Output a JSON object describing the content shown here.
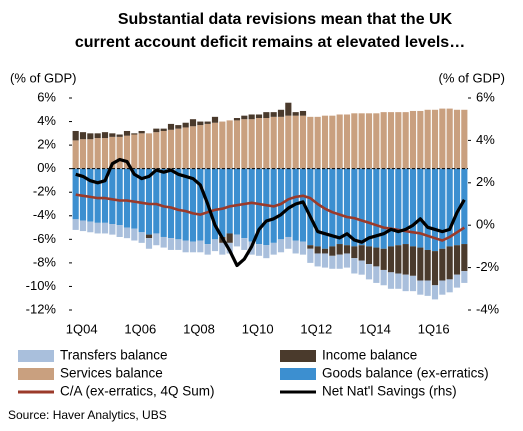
{
  "chart_data": {
    "type": "bar",
    "title": [
      "Substantial data revisions mean that the UK",
      "current account deficit remains at elevated levels…"
    ],
    "y_label": "(% of GDP)",
    "y2_label": "(% of GDP)",
    "source": "Source: Haver Analytics, UBS",
    "stacked": true,
    "categories": [
      "1Q04",
      null,
      null,
      null,
      null,
      null,
      null,
      null,
      "1Q06",
      null,
      null,
      null,
      null,
      null,
      null,
      null,
      "1Q08",
      null,
      null,
      null,
      null,
      null,
      null,
      null,
      "1Q10",
      null,
      null,
      null,
      null,
      null,
      null,
      null,
      "1Q12",
      null,
      null,
      null,
      null,
      null,
      null,
      null,
      "1Q14",
      null,
      null,
      null,
      null,
      null,
      null,
      null,
      "1Q16",
      null,
      null,
      null,
      null,
      null
    ],
    "ylim": [
      -12,
      6
    ],
    "yticks": [
      {
        "value": 6,
        "label": "6%"
      },
      {
        "value": 4,
        "label": "4%"
      },
      {
        "value": 2,
        "label": "2%"
      },
      {
        "value": 0,
        "label": "0%"
      },
      {
        "value": -2,
        "label": "-2%"
      },
      {
        "value": -4,
        "label": "-4%"
      },
      {
        "value": -6,
        "label": "-6%"
      },
      {
        "value": -8,
        "label": "-8%"
      },
      {
        "value": -10,
        "label": "-10%"
      },
      {
        "value": -12,
        "label": "-12%"
      }
    ],
    "y2lim": [
      -4,
      6
    ],
    "y2ticks": [
      {
        "value": 6,
        "label": "6%"
      },
      {
        "value": 4,
        "label": "4%"
      },
      {
        "value": 2,
        "label": "2%"
      },
      {
        "value": 0,
        "label": "0%"
      },
      {
        "value": -2,
        "label": "-2%"
      },
      {
        "value": -4,
        "label": "-4%"
      }
    ],
    "series": [
      {
        "name": "Transfers balance",
        "type": "bar",
        "color": "#a9bfdc",
        "values": [
          -0.9,
          -0.9,
          -0.9,
          -0.9,
          -0.9,
          -0.9,
          -1.0,
          -0.9,
          -1.0,
          -0.9,
          -0.9,
          -1.0,
          -0.9,
          -1.0,
          -0.9,
          -1.0,
          -0.9,
          -1.0,
          -0.9,
          -1.0,
          -1.0,
          -0.9,
          -1.0,
          -1.0,
          -1.1,
          -1.0,
          -1.1,
          -1.0,
          -1.1,
          -1.0,
          -1.1,
          -1.1,
          -1.2,
          -1.1,
          -1.2,
          -1.1,
          -1.2,
          -1.2,
          -1.3,
          -1.2,
          -1.3,
          -1.4,
          -1.3,
          -1.4,
          -1.3,
          -1.4,
          -1.3,
          -1.2,
          -1.3,
          -1.2,
          -1.2,
          -1.1,
          -1.1,
          -1.0
        ]
      },
      {
        "name": "Income balance",
        "type": "bar",
        "color": "#4a3a2c",
        "values": [
          0.8,
          0.6,
          0.5,
          0.4,
          0.5,
          0.3,
          0.2,
          0.4,
          0.1,
          0.2,
          -0.3,
          0.3,
          0.2,
          0.5,
          0.3,
          0.4,
          0.6,
          0.3,
          0.2,
          0.5,
          -0.5,
          -0.8,
          0.2,
          0.3,
          0.4,
          0.3,
          0.5,
          0.4,
          0.6,
          1.1,
          0.3,
          0.4,
          -0.3,
          -0.6,
          -0.4,
          -0.8,
          -0.9,
          -0.7,
          -1.0,
          -1.3,
          -1.5,
          -1.6,
          -1.8,
          -2.2,
          -2.4,
          -2.6,
          -2.5,
          -2.8,
          -2.6,
          -2.9,
          -2.7,
          -2.8,
          -2.5,
          -2.3
        ]
      },
      {
        "name": "Services balance",
        "type": "bar",
        "color": "#c9a07f",
        "values": [
          2.4,
          2.5,
          2.5,
          2.6,
          2.6,
          2.7,
          2.7,
          2.8,
          2.9,
          3.0,
          3.0,
          3.1,
          3.2,
          3.3,
          3.4,
          3.5,
          3.6,
          3.7,
          3.8,
          3.9,
          4.0,
          4.1,
          4.1,
          4.2,
          4.2,
          4.3,
          4.3,
          4.4,
          4.4,
          4.5,
          4.5,
          4.5,
          4.4,
          4.4,
          4.5,
          4.5,
          4.6,
          4.6,
          4.7,
          4.7,
          4.7,
          4.7,
          4.8,
          4.8,
          4.8,
          4.8,
          4.9,
          4.9,
          5.0,
          5.0,
          5.1,
          5.1,
          5.0,
          5.0
        ]
      },
      {
        "name": "Goods balance (ex-erratics)",
        "type": "bar",
        "color": "#3c8fd0",
        "values": [
          -4.3,
          -4.4,
          -4.5,
          -4.6,
          -4.6,
          -4.7,
          -4.8,
          -5.0,
          -5.1,
          -5.4,
          -5.6,
          -5.5,
          -5.8,
          -5.9,
          -6.0,
          -6.1,
          -6.2,
          -6.1,
          -6.4,
          -6.0,
          -5.8,
          -5.5,
          -5.6,
          -5.9,
          -6.2,
          -6.4,
          -6.5,
          -6.3,
          -6.0,
          -5.8,
          -6.1,
          -6.2,
          -6.5,
          -6.6,
          -6.8,
          -6.6,
          -6.4,
          -6.5,
          -6.6,
          -6.5,
          -6.6,
          -6.7,
          -6.8,
          -6.6,
          -6.5,
          -6.4,
          -6.6,
          -6.7,
          -6.9,
          -7.0,
          -6.8,
          -6.6,
          -6.5,
          -6.4
        ]
      },
      {
        "name": "C/A (ex-erratics, 4Q Sum)",
        "type": "line",
        "color": "#9b3a2a",
        "values": [
          -2.2,
          -2.3,
          -2.4,
          -2.5,
          -2.5,
          -2.6,
          -2.7,
          -2.7,
          -2.8,
          -2.9,
          -3.0,
          -3.0,
          -3.2,
          -3.3,
          -3.5,
          -3.6,
          -3.8,
          -3.9,
          -3.7,
          -3.5,
          -3.4,
          -3.2,
          -3.1,
          -3.0,
          -2.9,
          -3.0,
          -3.1,
          -3.2,
          -3.0,
          -2.6,
          -2.4,
          -2.3,
          -2.5,
          -3.0,
          -3.4,
          -3.7,
          -3.9,
          -4.1,
          -4.2,
          -4.4,
          -4.6,
          -4.8,
          -5.0,
          -5.1,
          -5.2,
          -5.3,
          -5.4,
          -5.5,
          -5.7,
          -5.9,
          -6.1,
          -5.8,
          -5.4,
          -5.0
        ]
      },
      {
        "name": "Net Nat'l Savings (rhs)",
        "type": "line",
        "axis": "y2",
        "color": "#000000",
        "values": [
          2.4,
          2.3,
          2.1,
          2.0,
          2.1,
          2.9,
          3.1,
          3.0,
          2.4,
          2.2,
          2.3,
          2.6,
          2.5,
          2.6,
          2.4,
          2.3,
          2.2,
          1.9,
          1.0,
          0.0,
          -0.6,
          -1.2,
          -1.9,
          -1.6,
          -1.0,
          -0.2,
          0.2,
          0.3,
          0.5,
          0.8,
          1.0,
          1.1,
          0.4,
          -0.3,
          -0.4,
          -0.5,
          -0.6,
          -0.4,
          -0.7,
          -0.8,
          -0.6,
          -0.5,
          -0.4,
          -0.2,
          -0.3,
          -0.2,
          0.0,
          0.3,
          -0.1,
          -0.2,
          -0.3,
          -0.2,
          0.6,
          1.2
        ]
      }
    ]
  }
}
